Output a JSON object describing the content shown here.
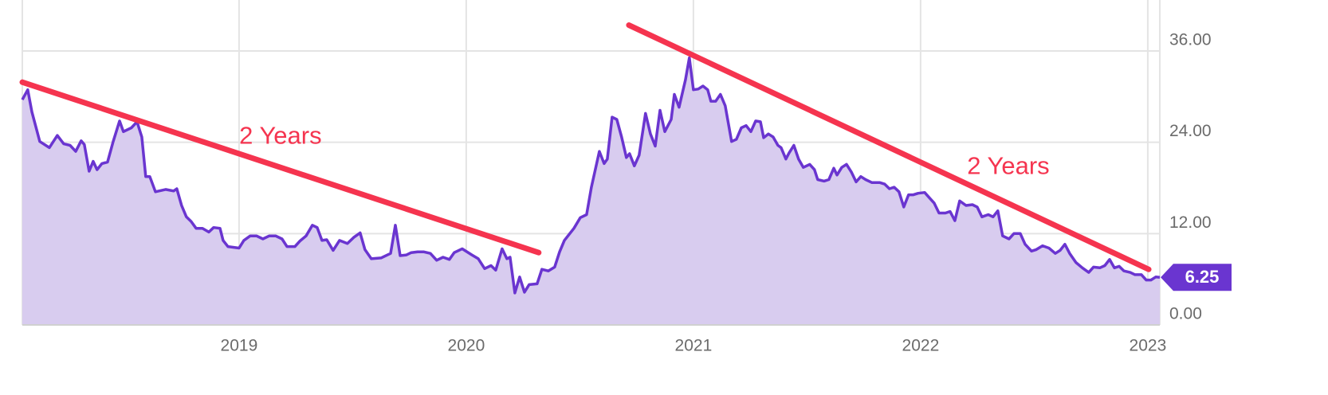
{
  "chart_data": {
    "type": "area",
    "x": [
      2018.046,
      2018.07,
      2018.088,
      2018.123,
      2018.165,
      2018.2,
      2018.228,
      2018.256,
      2018.281,
      2018.305,
      2018.319,
      2018.34,
      2018.358,
      2018.375,
      2018.396,
      2018.421,
      2018.446,
      2018.474,
      2018.491,
      2018.526,
      2018.551,
      2018.572,
      2018.589,
      2018.607,
      2018.632,
      2018.677,
      2018.712,
      2018.726,
      2018.747,
      2018.768,
      2018.789,
      2018.811,
      2018.839,
      2018.867,
      2018.888,
      2018.916,
      2018.93,
      2018.951,
      2019.0,
      2019.021,
      2019.049,
      2019.077,
      2019.105,
      2019.133,
      2019.161,
      2019.189,
      2019.211,
      2019.246,
      2019.267,
      2019.295,
      2019.323,
      2019.344,
      2019.365,
      2019.386,
      2019.414,
      2019.442,
      2019.477,
      2019.505,
      2019.533,
      2019.554,
      2019.582,
      2019.625,
      2019.667,
      2019.688,
      2019.709,
      2019.737,
      2019.758,
      2019.786,
      2019.814,
      2019.842,
      2019.87,
      2019.898,
      2019.926,
      2019.947,
      2019.982,
      2020.025,
      2020.053,
      2020.081,
      2020.109,
      2020.13,
      2020.158,
      2020.179,
      2020.193,
      2020.214,
      2020.235,
      2020.256,
      2020.277,
      2020.312,
      2020.333,
      2020.361,
      2020.389,
      2020.411,
      2020.432,
      2020.474,
      2020.502,
      2020.53,
      2020.551,
      2020.586,
      2020.607,
      2020.621,
      2020.642,
      2020.663,
      2020.684,
      2020.705,
      2020.719,
      2020.74,
      2020.761,
      2020.789,
      2020.811,
      2020.832,
      2020.853,
      2020.874,
      2020.902,
      2020.916,
      2020.937,
      2020.965,
      2020.982,
      2021.0,
      2021.021,
      2021.042,
      2021.063,
      2021.077,
      2021.098,
      2021.119,
      2021.14,
      2021.168,
      2021.189,
      2021.211,
      2021.232,
      2021.253,
      2021.274,
      2021.295,
      2021.309,
      2021.33,
      2021.351,
      2021.372,
      2021.386,
      2021.407,
      2021.421,
      2021.442,
      2021.463,
      2021.484,
      2021.512,
      2021.533,
      2021.547,
      2021.575,
      2021.596,
      2021.618,
      2021.632,
      2021.653,
      2021.674,
      2021.695,
      2021.716,
      2021.737,
      2021.758,
      2021.786,
      2021.821,
      2021.842,
      2021.863,
      2021.884,
      2021.905,
      2021.926,
      2021.947,
      2021.968,
      2021.989,
      2022.018,
      2022.039,
      2022.06,
      2022.081,
      2022.109,
      2022.13,
      2022.151,
      2022.172,
      2022.2,
      2022.228,
      2022.249,
      2022.27,
      2022.298,
      2022.319,
      2022.34,
      2022.361,
      2022.389,
      2022.411,
      2022.439,
      2022.46,
      2022.488,
      2022.509,
      2022.537,
      2022.565,
      2022.593,
      2022.614,
      2022.635,
      2022.656,
      2022.684,
      2022.712,
      2022.74,
      2022.761,
      2022.789,
      2022.811,
      2022.832,
      2022.853,
      2022.874,
      2022.895,
      2022.923,
      2022.944,
      2022.972,
      2022.993,
      2023.014,
      2023.035,
      2023.053
    ],
    "series": [
      {
        "color": "#6a35d0",
        "fill": "#d8ccef",
        "values": [
          29.6,
          30.9,
          28.0,
          24.1,
          23.3,
          24.9,
          23.8,
          23.6,
          22.8,
          24.2,
          23.7,
          20.2,
          21.5,
          20.4,
          21.2,
          21.4,
          24.1,
          26.8,
          25.4,
          25.9,
          26.7,
          24.7,
          19.5,
          19.5,
          17.5,
          17.8,
          17.6,
          17.9,
          15.7,
          14.2,
          13.6,
          12.7,
          12.7,
          12.2,
          12.8,
          12.7,
          11.1,
          10.3,
          10.1,
          11.1,
          11.7,
          11.7,
          11.3,
          11.7,
          11.7,
          11.3,
          10.3,
          10.3,
          11.0,
          11.7,
          13.1,
          12.8,
          11.1,
          11.2,
          9.8,
          11.1,
          10.7,
          11.5,
          12.1,
          9.9,
          8.7,
          8.8,
          9.4,
          13.1,
          9.1,
          9.2,
          9.5,
          9.6,
          9.6,
          9.4,
          8.5,
          8.9,
          8.6,
          9.5,
          10.0,
          9.2,
          8.7,
          7.4,
          7.8,
          7.2,
          10.0,
          8.7,
          8.9,
          4.2,
          6.3,
          4.3,
          5.3,
          5.4,
          7.3,
          7.1,
          7.6,
          9.6,
          11.1,
          12.7,
          14.1,
          14.5,
          18.1,
          22.8,
          21.2,
          21.8,
          27.3,
          27.0,
          24.7,
          22.0,
          22.5,
          20.9,
          22.3,
          27.8,
          25.1,
          23.5,
          28.2,
          25.4,
          27.0,
          30.3,
          28.6,
          32.2,
          35.1,
          30.9,
          31.0,
          31.4,
          30.9,
          29.4,
          29.4,
          30.3,
          28.8,
          24.1,
          24.4,
          25.9,
          26.2,
          25.4,
          26.8,
          26.7,
          24.6,
          25.1,
          24.7,
          23.6,
          23.3,
          21.8,
          22.6,
          23.6,
          21.8,
          20.7,
          21.1,
          20.4,
          19.1,
          18.9,
          19.1,
          20.6,
          19.7,
          20.7,
          21.1,
          20.1,
          18.8,
          19.5,
          19.1,
          18.7,
          18.7,
          18.5,
          17.9,
          18.1,
          17.5,
          15.5,
          17.1,
          17.1,
          17.3,
          17.4,
          16.7,
          16.0,
          14.7,
          14.7,
          14.9,
          13.7,
          16.3,
          15.7,
          15.8,
          15.5,
          14.2,
          14.5,
          14.2,
          15.0,
          11.7,
          11.3,
          12.0,
          12.0,
          10.6,
          9.7,
          9.9,
          10.4,
          10.1,
          9.4,
          9.8,
          10.6,
          9.4,
          8.2,
          7.5,
          6.9,
          7.6,
          7.5,
          7.8,
          8.6,
          7.5,
          7.7,
          7.1,
          6.9,
          6.6,
          6.6,
          5.9,
          5.9,
          6.3,
          6.25
        ]
      }
    ],
    "xlim": [
      2018.046,
      2023.053
    ],
    "xticks": [
      2019,
      2020,
      2021,
      2022,
      2023
    ],
    "ylim": [
      0,
      42.7
    ],
    "yticks": [
      {
        "value": 0,
        "label": "0.00"
      },
      {
        "value": 12,
        "label": "12.00"
      },
      {
        "value": 24,
        "label": "24.00"
      },
      {
        "value": 36,
        "label": "36.00"
      }
    ],
    "grid": true,
    "annotations": [
      {
        "text": "2 Years",
        "x1": 2018.046,
        "y1": 31.9,
        "x2": 2020.319,
        "y2": 9.5,
        "color": "#f5344f"
      },
      {
        "text": "2 Years",
        "x1": 2020.716,
        "y1": 39.4,
        "x2": 2023.004,
        "y2": 7.3,
        "color": "#f5344f"
      }
    ],
    "tag_color": "#6a35d0"
  }
}
